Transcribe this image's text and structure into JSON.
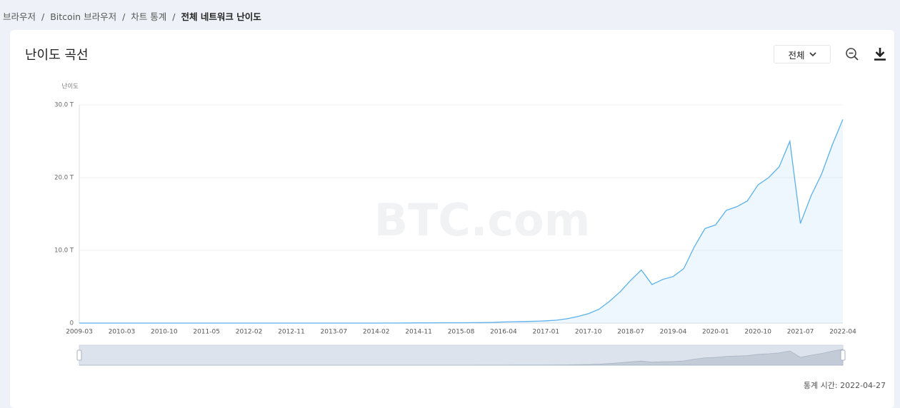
{
  "breadcrumb": {
    "items": [
      "브라우저",
      "Bitcoin 브라우저",
      "차트 통계",
      "전체 네트워크 난이도"
    ],
    "separator": "/"
  },
  "chart_data": {
    "type": "area",
    "title": "난이도 곡선",
    "y_label": "난이도",
    "watermark": "BTC.com",
    "range_selector": "전체",
    "categories": [
      "2009-03",
      null,
      null,
      null,
      "2010-03",
      null,
      null,
      null,
      "2010-10",
      null,
      null,
      null,
      "2011-05",
      null,
      null,
      null,
      "2012-02",
      null,
      null,
      null,
      "2012-11",
      null,
      null,
      null,
      "2013-07",
      null,
      null,
      null,
      "2014-02",
      null,
      null,
      null,
      "2014-11",
      null,
      null,
      null,
      "2015-08",
      null,
      null,
      null,
      "2016-04",
      null,
      null,
      null,
      "2017-01",
      null,
      null,
      null,
      "2017-10",
      null,
      null,
      null,
      "2018-07",
      null,
      null,
      null,
      "2019-04",
      null,
      null,
      null,
      "2020-01",
      null,
      null,
      null,
      "2020-10",
      null,
      null,
      null,
      "2021-07",
      null,
      null,
      null,
      "2022-04"
    ],
    "values": [
      0,
      0,
      0,
      0,
      0,
      0,
      0,
      0,
      0,
      0,
      0,
      0,
      0,
      0,
      0,
      0,
      0,
      0,
      0,
      0,
      0,
      0,
      0,
      0,
      3e-05,
      0.0001,
      0.0005,
      0.0015,
      0.003,
      0.006,
      0.013,
      0.02,
      0.04,
      0.044,
      0.047,
      0.05,
      0.05,
      0.06,
      0.07,
      0.1,
      0.16,
      0.2,
      0.22,
      0.25,
      0.31,
      0.4,
      0.6,
      0.9,
      1.3,
      1.9,
      3,
      4.3,
      5.9,
      7.3,
      5.3,
      6.0,
      6.4,
      7.5,
      10.5,
      13.0,
      13.5,
      15.5,
      16.0,
      16.8,
      19.0,
      20.0,
      21.5,
      25.0,
      13.7,
      17.5,
      20.5,
      24.5,
      28.0
    ],
    "color": "#5ab1ef",
    "ylim": [
      0,
      30
    ],
    "yticks": [
      0,
      {
        "value": 10,
        "label": "10.0 T"
      },
      {
        "value": 20,
        "label": "20.0 T"
      },
      {
        "value": 30,
        "label": "30.0 T"
      }
    ],
    "grid": true
  },
  "footer": "통계 시간: 2022-04-27"
}
